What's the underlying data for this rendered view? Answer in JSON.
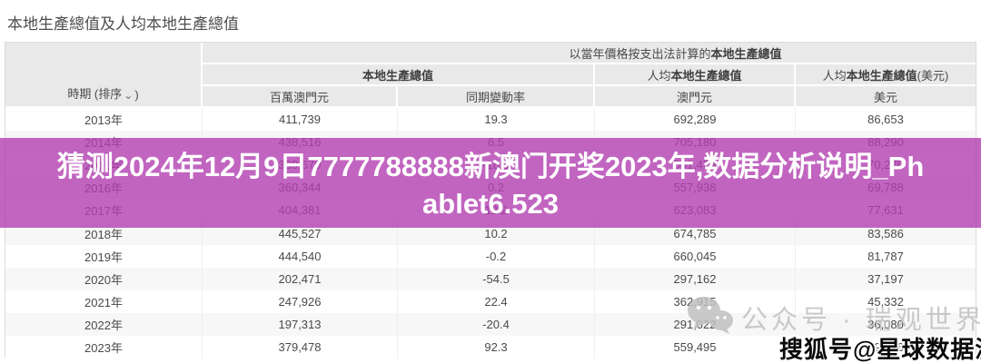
{
  "page": {
    "title": "本地生產總值及人均本地生產總值"
  },
  "table": {
    "top_header": {
      "prefix": "以當年價格按支出法計算的",
      "bold": "本地生產總值"
    },
    "groups": [
      {
        "prefix": "",
        "bold": "本地生產總值",
        "suffix": ""
      },
      {
        "prefix": "人均",
        "bold": "本地生產總值",
        "suffix": ""
      },
      {
        "prefix": "人均",
        "bold": "本地生產總值",
        "suffix": "(美元)"
      }
    ],
    "period_header": {
      "label": "時期 (排序",
      "sort_icon": "⌄",
      "close": ")"
    },
    "units": [
      "百萬澳門元",
      "同期變動率",
      "澳門元",
      "美元"
    ],
    "rows": [
      [
        "2013年",
        "411,739",
        "19.3",
        "692,289",
        "86,653"
      ],
      [
        "2014年",
        "438,516",
        "6.5",
        "705,180",
        "88,290"
      ],
      [
        "2015年",
        "359,670",
        "-18.0",
        "561,429",
        "70,279"
      ],
      [
        "2016年",
        "360,344",
        "0.2",
        "557,938",
        "69,788"
      ],
      [
        "2017年",
        "404,381",
        "12.2",
        "623,083",
        "77,631"
      ],
      [
        "2018年",
        "445,527",
        "10.2",
        "674,785",
        "83,586"
      ],
      [
        "2019年",
        "444,540",
        "-0.2",
        "660,045",
        "81,787"
      ],
      [
        "2020年",
        "202,471",
        "-54.5",
        "297,162",
        "37,197"
      ],
      [
        "2021年",
        "247,926",
        "22.4",
        "362,915",
        "45,332"
      ],
      [
        "2022年",
        "197,313",
        "-20.4",
        "291,022",
        "36,080"
      ],
      [
        "2023年",
        "379,478",
        "92.3",
        "559,495",
        "69,676"
      ]
    ]
  },
  "banner": {
    "line1": "猜测2024年12月9日7777788888新澳门开奖2023年,数据分析说明_Ph",
    "line2": "ablet6.523",
    "bg_color": "#b13fb0",
    "text_color": "#ffffff"
  },
  "watermarks": {
    "wechat": {
      "icon": "wechat-bubbles-icon",
      "text": "公众号 · 瑞观世界",
      "color": "#c0c0c0"
    },
    "sohu": {
      "text": "搜狐号@星球数据派",
      "color": "#0a0a0a"
    }
  }
}
